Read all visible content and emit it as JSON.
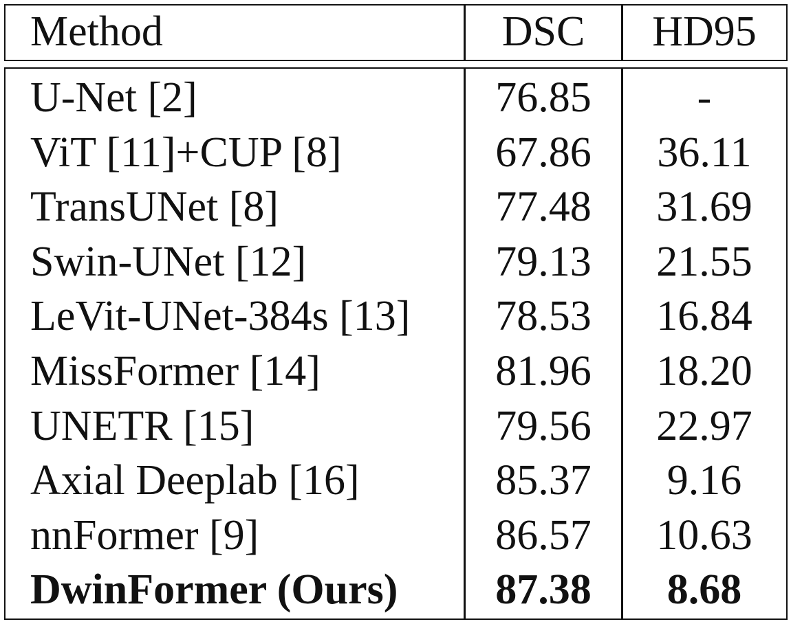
{
  "table": {
    "headers": {
      "method": "Method",
      "dsc": "DSC",
      "hd95": "HD95"
    },
    "rows": [
      {
        "method": "U-Net [2]",
        "dsc": "76.85",
        "hd95": "-"
      },
      {
        "method": "ViT [11]+CUP [8]",
        "dsc": "67.86",
        "hd95": "36.11"
      },
      {
        "method": "TransUNet [8]",
        "dsc": "77.48",
        "hd95": "31.69"
      },
      {
        "method": "Swin-UNet [12]",
        "dsc": "79.13",
        "hd95": "21.55"
      },
      {
        "method": "LeVit-UNet-384s [13]",
        "dsc": "78.53",
        "hd95": "16.84"
      },
      {
        "method": "MissFormer [14]",
        "dsc": "81.96",
        "hd95": "18.20"
      },
      {
        "method": "UNETR [15]",
        "dsc": "79.56",
        "hd95": "22.97"
      },
      {
        "method": "Axial Deeplab [16]",
        "dsc": "85.37",
        "hd95": "9.16"
      },
      {
        "method": "nnFormer [9]",
        "dsc": "86.57",
        "hd95": "10.63"
      },
      {
        "method": "DwinFormer (Ours)",
        "dsc": "87.38",
        "hd95": "8.68",
        "bold": true
      }
    ]
  }
}
